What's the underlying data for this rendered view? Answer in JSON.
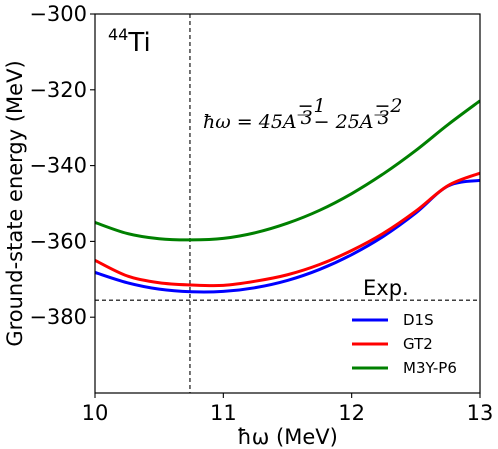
{
  "chart_data": {
    "type": "line",
    "xlabel": "ħω (MeV)",
    "ylabel": "Ground-state energy (MeV)",
    "xlim": [
      10,
      13
    ],
    "ylim": [
      -400,
      -300
    ],
    "x_ticks": [
      "10",
      "11",
      "12",
      "13"
    ],
    "y_ticks": [
      "−300",
      "−320",
      "−340",
      "−360",
      "−380"
    ],
    "grid": false,
    "nucleus_label": {
      "mass": "44",
      "element": "Ti"
    },
    "formula_annotation": "ħω = 45A^(−1/3) − 25A^(−2/3)",
    "formula_parts": {
      "lhs": "ħω = 45",
      "A1": "A",
      "exp1_num": "−1",
      "exp1_den": "3",
      "mid": " − 25",
      "A2": "A",
      "exp2_num": "−2",
      "exp2_den": "3"
    },
    "vertical_reference_x": 10.74,
    "experiment": {
      "label": "Exp.",
      "value": -375.5
    },
    "legend_position": "lower-right",
    "x": [
      10.0,
      10.25,
      10.5,
      10.75,
      11.0,
      11.25,
      11.5,
      11.75,
      12.0,
      12.25,
      12.5,
      12.75,
      13.0
    ],
    "series": [
      {
        "name": "D1S",
        "color": "#0000ff",
        "values": [
          -368.2,
          -370.9,
          -372.6,
          -373.3,
          -373.2,
          -372.2,
          -370.3,
          -367.4,
          -363.5,
          -358.6,
          -352.5,
          -345.4,
          -343.9
        ]
      },
      {
        "name": "GT2",
        "color": "#ff0000",
        "values": [
          -365.0,
          -369.1,
          -370.9,
          -371.5,
          -371.6,
          -370.5,
          -368.8,
          -366.1,
          -362.4,
          -357.8,
          -352.0,
          -345.3,
          -342.0
        ]
      },
      {
        "name": "M3Y-P6",
        "color": "#008000",
        "values": [
          -355.0,
          -357.9,
          -359.3,
          -359.6,
          -359.2,
          -357.7,
          -355.2,
          -351.8,
          -347.4,
          -342.1,
          -336.0,
          -329.2,
          -322.9
        ]
      }
    ]
  }
}
